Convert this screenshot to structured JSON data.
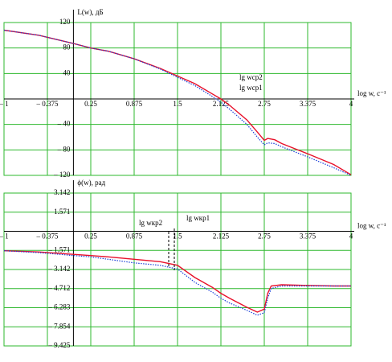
{
  "chart_data": [
    {
      "type": "line",
      "y_label": "L(w), дБ",
      "x_label": "log w, с⁻¹",
      "annotations": [
        "lg wср2",
        "lg wср1"
      ],
      "x": [
        -1,
        -0.5,
        0,
        0.25,
        0.5,
        0.875,
        1.25,
        1.5,
        1.75,
        2,
        2.125,
        2.25,
        2.5,
        2.65,
        2.75,
        2.8,
        2.9,
        3,
        3.375,
        3.75,
        4
      ],
      "series": [
        {
          "color": "#e8102a",
          "style": "solid",
          "values": [
            108,
            100,
            87,
            80,
            75,
            63,
            48,
            36,
            24,
            8,
            0,
            -10,
            -33,
            -52,
            -65,
            -62,
            -64,
            -70,
            -86,
            -103,
            -119
          ]
        },
        {
          "color": "#1a3fd8",
          "style": "dotted",
          "values": [
            108,
            100,
            87,
            80,
            75,
            63,
            47,
            34,
            21,
            4,
            -5,
            -16,
            -40,
            -60,
            -72,
            -69,
            -70,
            -75,
            -91,
            -108,
            -120
          ]
        }
      ],
      "xlim": [
        -1,
        4
      ],
      "xticks": [
        {
          "value": -1,
          "label": "– 1"
        },
        {
          "value": -0.375,
          "label": "– 0.375"
        },
        0.25,
        0.875,
        1.5,
        2.125,
        2.75,
        3.375,
        4
      ],
      "ylim": [
        -120,
        120
      ],
      "yticks": [
        120,
        80,
        40,
        {
          "value": -40,
          "label": "– 40"
        },
        {
          "value": -80,
          "label": "– 80"
        },
        {
          "value": -120,
          "label": "– 120"
        }
      ],
      "grid": true
    },
    {
      "type": "line",
      "y_label": "ϕ(w), рад",
      "x_label": "log w, с⁻¹",
      "annotations": [
        "lg wкр2",
        "lg wкр1"
      ],
      "x": [
        -1,
        -0.5,
        0,
        0.25,
        0.5,
        0.875,
        1.25,
        1.5,
        1.75,
        2,
        2.125,
        2.25,
        2.5,
        2.65,
        2.75,
        2.8,
        2.85,
        3,
        3.375,
        3.75,
        4
      ],
      "series": [
        {
          "color": "#e8102a",
          "style": "solid",
          "values": [
            -1.6,
            -1.7,
            -1.9,
            -2.0,
            -2.1,
            -2.3,
            -2.5,
            -2.8,
            -3.8,
            -4.6,
            -5.1,
            -5.5,
            -6.25,
            -6.65,
            -6.4,
            -5.1,
            -4.5,
            -4.4,
            -4.45,
            -4.5,
            -4.5
          ]
        },
        {
          "color": "#1a3fd8",
          "style": "dotted",
          "values": [
            -1.6,
            -1.75,
            -2.0,
            -2.1,
            -2.3,
            -2.6,
            -2.8,
            -3.1,
            -4.2,
            -5.0,
            -5.5,
            -5.9,
            -6.5,
            -6.9,
            -6.7,
            -5.5,
            -4.7,
            -4.5,
            -4.5,
            -4.5,
            -4.5
          ]
        }
      ],
      "xlim": [
        -1,
        4
      ],
      "xticks": [
        {
          "value": -1,
          "label": "– 1"
        },
        {
          "value": -0.375,
          "label": "– 0.375"
        },
        0.25,
        0.875,
        1.5,
        2.125,
        2.75,
        3.375,
        4
      ],
      "ylim": [
        -9.425,
        3.142
      ],
      "yticks": [
        3.142,
        1.571,
        {
          "value": -1.571,
          "label": "– 1.571"
        },
        {
          "value": -3.142,
          "label": "– 3.142"
        },
        {
          "value": -4.712,
          "label": "– 4.712"
        },
        {
          "value": -6.283,
          "label": "– 6.283"
        },
        {
          "value": -7.854,
          "label": "– 7.854"
        },
        {
          "value": -9.425,
          "label": "– 9.425"
        }
      ],
      "grid": true
    }
  ]
}
